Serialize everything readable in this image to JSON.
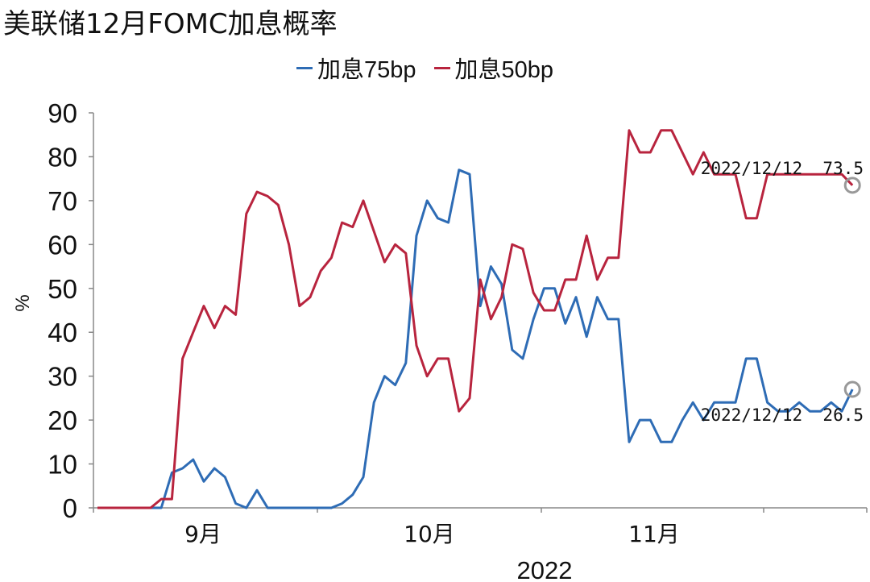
{
  "chart_data": {
    "type": "line",
    "title": "美联储12月FOMC加息概率",
    "xlabel": "2022",
    "ylabel": "%",
    "ylim": [
      0,
      90
    ],
    "yticks": [
      "0",
      "10",
      "20",
      "30",
      "40",
      "50",
      "60",
      "70",
      "80",
      "90"
    ],
    "xticks": [
      "9月",
      "10月",
      "11月"
    ],
    "grid": false,
    "legend_position": "top",
    "series": [
      {
        "name": "加息75bp",
        "color": "#2E6CB5",
        "values": [
          0,
          0,
          0,
          0,
          0,
          0,
          0,
          8,
          9,
          11,
          6,
          9,
          7,
          1,
          0,
          4,
          0,
          0,
          0,
          0,
          0,
          0,
          0,
          1,
          3,
          7,
          24,
          30,
          28,
          33,
          62,
          70,
          66,
          65,
          77,
          76,
          46,
          55,
          51,
          36,
          34,
          43,
          50,
          50,
          42,
          48,
          39,
          48,
          43,
          43,
          15,
          20,
          20,
          15,
          15,
          20,
          24,
          20,
          24,
          24,
          24,
          34,
          34,
          24,
          22,
          22,
          24,
          22,
          22,
          24,
          22,
          27
        ]
      },
      {
        "name": "加息50bp",
        "color": "#B8243E",
        "values": [
          0,
          0,
          0,
          0,
          0,
          0,
          2,
          2,
          34,
          40,
          46,
          41,
          46,
          44,
          67,
          72,
          71,
          69,
          60,
          46,
          48,
          54,
          57,
          65,
          64,
          70,
          63,
          56,
          60,
          58,
          37,
          30,
          34,
          34,
          22,
          25,
          52,
          43,
          48,
          60,
          59,
          49,
          45,
          45,
          52,
          52,
          62,
          52,
          57,
          57,
          86,
          81,
          81,
          86,
          86,
          81,
          76,
          81,
          76,
          76,
          76,
          66,
          66,
          76,
          76,
          76,
          76,
          76,
          76,
          76,
          76,
          73.5
        ]
      }
    ],
    "annotations": [
      "2022/12/12  73.5",
      "2022/12/12  26.5"
    ]
  }
}
